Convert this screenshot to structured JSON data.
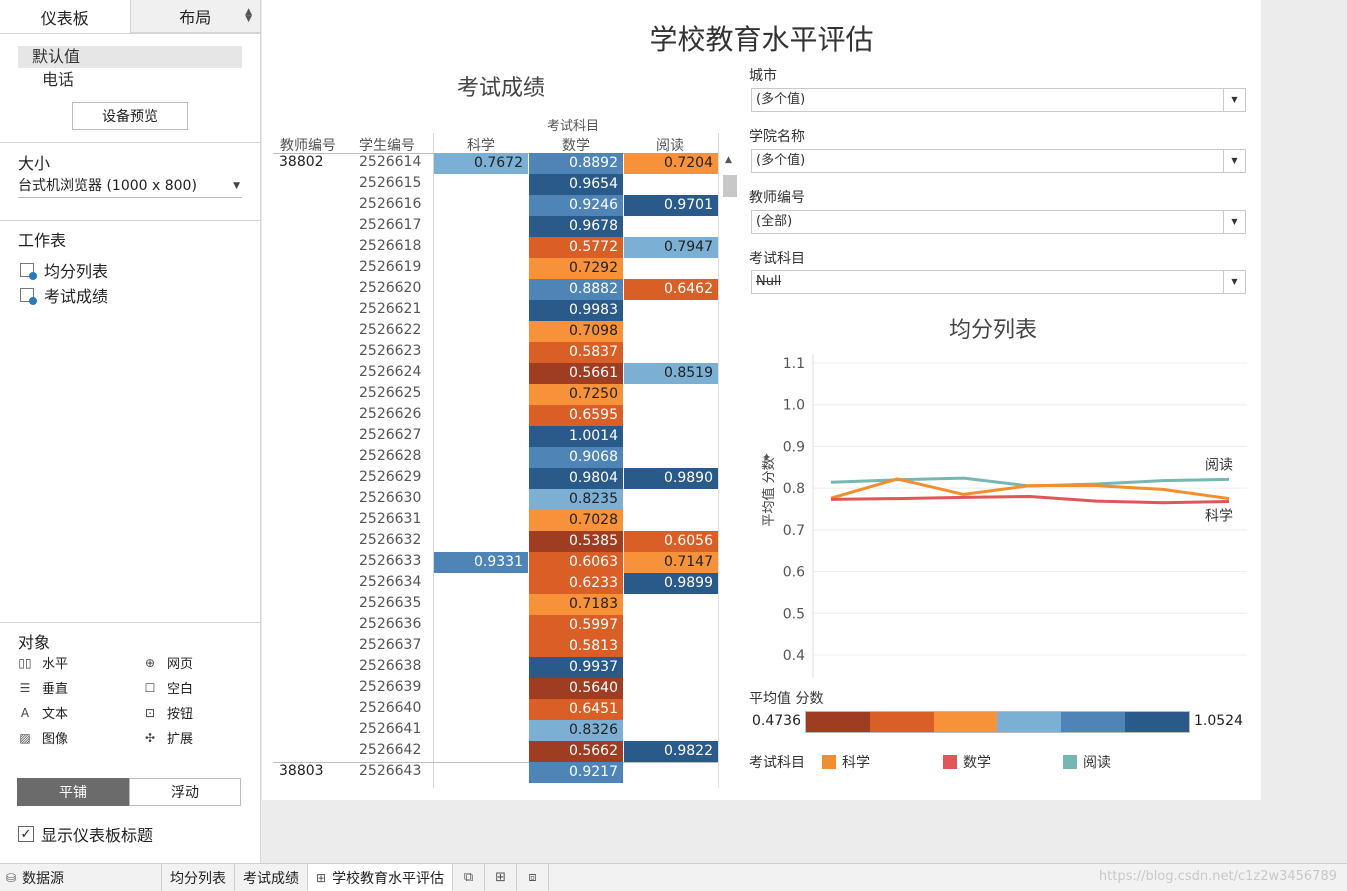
{
  "left_panel": {
    "tabs": [
      "仪表板",
      "布局"
    ],
    "devices": {
      "default": "默认值",
      "phone": "电话"
    },
    "preview_button": "设备预览",
    "size": {
      "title": "大小",
      "value": "台式机浏览器 (1000 x 800)"
    },
    "sheets": {
      "title": "工作表",
      "items": [
        "均分列表",
        "考试成绩"
      ]
    },
    "objects": {
      "title": "对象",
      "items": [
        {
          "label": "水平",
          "icon": "horizontal-container-icon"
        },
        {
          "label": "网页",
          "icon": "web-page-icon"
        },
        {
          "label": "垂直",
          "icon": "vertical-container-icon"
        },
        {
          "label": "空白",
          "icon": "blank-icon"
        },
        {
          "label": "文本",
          "icon": "text-icon"
        },
        {
          "label": "按钮",
          "icon": "button-icon"
        },
        {
          "label": "图像",
          "icon": "image-icon"
        },
        {
          "label": "扩展",
          "icon": "extension-icon"
        }
      ]
    },
    "layout_mode": {
      "tiled": "平铺",
      "floating": "浮动"
    },
    "show_title": {
      "label": "显示仪表板标题",
      "checked": true
    }
  },
  "bottom_tabs": {
    "datasource": "数据源",
    "sheets": [
      "均分列表",
      "考试成绩",
      "学校教育水平评估"
    ],
    "active": "学校教育水平评估",
    "watermark": "https://blog.csdn.net/c1z2w3456789"
  },
  "dashboard": {
    "title": "学校教育水平评估",
    "table": {
      "title": "考试成绩",
      "group_header": "考试科目",
      "headers": {
        "teacher": "教师编号",
        "student": "学生编号",
        "subjects": [
          "科学",
          "数学",
          "阅读"
        ]
      },
      "rows": [
        {
          "teacher": "38802",
          "student": "2526614",
          "sci": "0.7672",
          "math": "0.8892",
          "read": "0.7204"
        },
        {
          "teacher": "",
          "student": "2526615",
          "sci": null,
          "math": "0.9654",
          "read": null
        },
        {
          "teacher": "",
          "student": "2526616",
          "sci": null,
          "math": "0.9246",
          "read": "0.9701"
        },
        {
          "teacher": "",
          "student": "2526617",
          "sci": null,
          "math": "0.9678",
          "read": null
        },
        {
          "teacher": "",
          "student": "2526618",
          "sci": null,
          "math": "0.5772",
          "read": "0.7947"
        },
        {
          "teacher": "",
          "student": "2526619",
          "sci": null,
          "math": "0.7292",
          "read": null
        },
        {
          "teacher": "",
          "student": "2526620",
          "sci": null,
          "math": "0.8882",
          "read": "0.6462"
        },
        {
          "teacher": "",
          "student": "2526621",
          "sci": null,
          "math": "0.9983",
          "read": null
        },
        {
          "teacher": "",
          "student": "2526622",
          "sci": null,
          "math": "0.7098",
          "read": null
        },
        {
          "teacher": "",
          "student": "2526623",
          "sci": null,
          "math": "0.5837",
          "read": null
        },
        {
          "teacher": "",
          "student": "2526624",
          "sci": null,
          "math": "0.5661",
          "read": "0.8519"
        },
        {
          "teacher": "",
          "student": "2526625",
          "sci": null,
          "math": "0.7250",
          "read": null
        },
        {
          "teacher": "",
          "student": "2526626",
          "sci": null,
          "math": "0.6595",
          "read": null
        },
        {
          "teacher": "",
          "student": "2526627",
          "sci": null,
          "math": "1.0014",
          "read": null
        },
        {
          "teacher": "",
          "student": "2526628",
          "sci": null,
          "math": "0.9068",
          "read": null
        },
        {
          "teacher": "",
          "student": "2526629",
          "sci": null,
          "math": "0.9804",
          "read": "0.9890"
        },
        {
          "teacher": "",
          "student": "2526630",
          "sci": null,
          "math": "0.8235",
          "read": null
        },
        {
          "teacher": "",
          "student": "2526631",
          "sci": null,
          "math": "0.7028",
          "read": null
        },
        {
          "teacher": "",
          "student": "2526632",
          "sci": null,
          "math": "0.5385",
          "read": "0.6056"
        },
        {
          "teacher": "",
          "student": "2526633",
          "sci": "0.9331",
          "math": "0.6063",
          "read": "0.7147"
        },
        {
          "teacher": "",
          "student": "2526634",
          "sci": null,
          "math": "0.6233",
          "read": "0.9899"
        },
        {
          "teacher": "",
          "student": "2526635",
          "sci": null,
          "math": "0.7183",
          "read": null
        },
        {
          "teacher": "",
          "student": "2526636",
          "sci": null,
          "math": "0.5997",
          "read": null
        },
        {
          "teacher": "",
          "student": "2526637",
          "sci": null,
          "math": "0.5813",
          "read": null
        },
        {
          "teacher": "",
          "student": "2526638",
          "sci": null,
          "math": "0.9937",
          "read": null
        },
        {
          "teacher": "",
          "student": "2526639",
          "sci": null,
          "math": "0.5640",
          "read": null
        },
        {
          "teacher": "",
          "student": "2526640",
          "sci": null,
          "math": "0.6451",
          "read": null
        },
        {
          "teacher": "",
          "student": "2526641",
          "sci": null,
          "math": "0.8326",
          "read": null
        },
        {
          "teacher": "",
          "student": "2526642",
          "sci": null,
          "math": "0.5662",
          "read": "0.9822"
        },
        {
          "teacher": "38803",
          "student": "2526643",
          "sci": null,
          "math": "0.9217",
          "read": null
        }
      ]
    },
    "filters": [
      {
        "label": "城市",
        "value": "(多个值)",
        "strike": false
      },
      {
        "label": "学院名称",
        "value": "(多个值)",
        "strike": false
      },
      {
        "label": "教师编号",
        "value": "(全部)",
        "strike": false
      },
      {
        "label": "考试科目",
        "value": "Null",
        "strike": true
      }
    ],
    "color_legend": {
      "title": "平均值 分数",
      "min": "0.4736",
      "max": "1.0524",
      "colors": [
        "#9e3d22",
        "#d95f26",
        "#f7923a",
        "#7bafd4",
        "#4e84b6",
        "#2a5a8a"
      ]
    },
    "category_legend": {
      "title": "考试科目",
      "items": [
        {
          "label": "科学",
          "color": "#f28e2b"
        },
        {
          "label": "数学",
          "color": "#e15759"
        },
        {
          "label": "阅读",
          "color": "#76b7b2"
        }
      ]
    }
  },
  "chart_data": {
    "type": "line",
    "title": "均分列表",
    "ylabel": "平均值 分数",
    "ylim": [
      0.4,
      1.1
    ],
    "yticks": [
      "1.1",
      "1.0",
      "0.9",
      "0.8",
      "0.7",
      "0.6",
      "0.5",
      "0.4"
    ],
    "series": [
      {
        "name": "阅读",
        "color": "#76b7b2",
        "values": [
          0.814,
          0.82,
          0.824,
          0.805,
          0.81,
          0.818,
          0.821
        ],
        "end_label": "阅读"
      },
      {
        "name": "科学",
        "color": "#f28e2b",
        "values": [
          0.776,
          0.822,
          0.785,
          0.806,
          0.806,
          0.797,
          0.775
        ],
        "end_label": "科学"
      },
      {
        "name": "数学",
        "color": "#e15759",
        "values": [
          0.773,
          0.775,
          0.778,
          0.78,
          0.769,
          0.765,
          0.768
        ]
      }
    ]
  }
}
